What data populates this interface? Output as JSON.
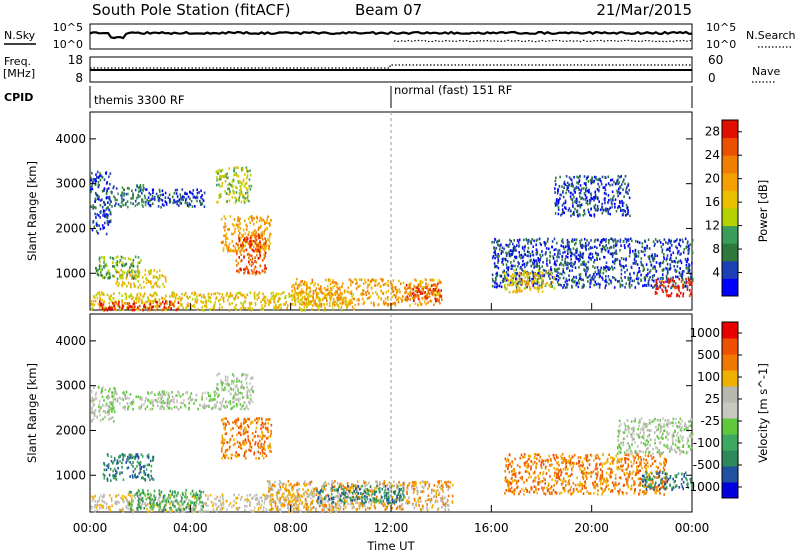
{
  "header": {
    "title": "South Pole Station (fitACF)",
    "beam": "Beam 07",
    "date": "21/Mar/2015"
  },
  "panels": {
    "nsky": {
      "label": "N.Sky",
      "ticks": [
        "10^5",
        "10^0"
      ],
      "right_ticks": [
        "10^5",
        "10^0"
      ],
      "right_label": "N.Search"
    },
    "freq": {
      "label_top": "Freq.",
      "label_bottom": "[MHz]",
      "ticks": [
        "18",
        "8"
      ],
      "right_ticks": [
        "60",
        "0"
      ],
      "right_label": "Nave"
    },
    "cpid": {
      "label": "CPID",
      "segments": [
        "themis 3300 RF",
        "normal (fast) 151 RF"
      ]
    }
  },
  "chart_data": [
    {
      "type": "heatmap",
      "title": "",
      "xlabel": "Time UT",
      "ylabel": "Slant Range [km]",
      "x_ticks": [
        "00:00",
        "04:00",
        "08:00",
        "12:00",
        "16:00",
        "20:00",
        "00:00"
      ],
      "xlim_hours": [
        0,
        24
      ],
      "ylim_km": [
        180,
        4600
      ],
      "y_ticks": [
        1000,
        2000,
        3000,
        4000
      ],
      "colorbar": {
        "label": "Power [dB]",
        "ticks": [
          "4",
          "8",
          "12",
          "16",
          "20",
          "24",
          "28"
        ],
        "colors": [
          "#0000ff",
          "#1c3fb4",
          "#2d7a3c",
          "#3a9e5a",
          "#b5d100",
          "#e8c000",
          "#f3a000",
          "#f07e00",
          "#ea5000",
          "#e01000"
        ],
        "range": [
          0,
          30
        ]
      },
      "regions": [
        {
          "t0": 0.0,
          "t1": 0.8,
          "r0": 1900,
          "r1": 3300,
          "level": 1
        },
        {
          "t0": 0.8,
          "t1": 2.2,
          "r0": 2500,
          "r1": 3000,
          "level": 2
        },
        {
          "t0": 2.2,
          "t1": 4.6,
          "r0": 2500,
          "r1": 2900,
          "level": 1
        },
        {
          "t0": 0.2,
          "t1": 2.0,
          "r0": 900,
          "r1": 1400,
          "level": 3
        },
        {
          "t0": 1.0,
          "t1": 3.0,
          "r0": 700,
          "r1": 1100,
          "level": 5
        },
        {
          "t0": 5.0,
          "t1": 6.4,
          "r0": 2600,
          "r1": 3400,
          "level": 4
        },
        {
          "t0": 5.2,
          "t1": 7.2,
          "r0": 1500,
          "r1": 2300,
          "level": 6
        },
        {
          "t0": 5.8,
          "t1": 7.0,
          "r0": 1000,
          "r1": 1900,
          "level": 8
        },
        {
          "t0": 0.0,
          "t1": 10.5,
          "r0": 200,
          "r1": 600,
          "level": 5
        },
        {
          "t0": 0.3,
          "t1": 3.5,
          "r0": 200,
          "r1": 400,
          "level": 9
        },
        {
          "t0": 8.0,
          "t1": 14.0,
          "r0": 300,
          "r1": 900,
          "level": 6
        },
        {
          "t0": 12.5,
          "t1": 14.0,
          "r0": 400,
          "r1": 800,
          "level": 8
        },
        {
          "t0": 16.0,
          "t1": 24.0,
          "r0": 700,
          "r1": 1800,
          "level": 1
        },
        {
          "t0": 16.5,
          "t1": 18.5,
          "r0": 600,
          "r1": 1100,
          "level": 5
        },
        {
          "t0": 22.5,
          "t1": 24.0,
          "r0": 500,
          "r1": 900,
          "level": 9
        },
        {
          "t0": 18.5,
          "t1": 21.5,
          "r0": 2300,
          "r1": 3200,
          "level": 1
        }
      ]
    },
    {
      "type": "heatmap",
      "title": "",
      "xlabel": "Time UT",
      "ylabel": "Slant Range [km]",
      "x_ticks": [
        "00:00",
        "04:00",
        "08:00",
        "12:00",
        "16:00",
        "20:00",
        "00:00"
      ],
      "xlim_hours": [
        0,
        24
      ],
      "ylim_km": [
        180,
        4600
      ],
      "y_ticks": [
        1000,
        2000,
        3000,
        4000
      ],
      "colorbar": {
        "label": "Velocity [m s^-1]",
        "ticks": [
          "1000",
          "500",
          "100",
          "25",
          "-25",
          "-100",
          "-500",
          "-1000"
        ],
        "colors": [
          "#0000dd",
          "#2050a0",
          "#2e8a5a",
          "#3da860",
          "#60c83c",
          "#c8c8c0",
          "#b8b8b0",
          "#f0b000",
          "#f07800",
          "#ee5000",
          "#e80000"
        ],
        "range": [
          -1200,
          1200
        ]
      },
      "regions": [
        {
          "t0": 0.0,
          "t1": 1.0,
          "r0": 2200,
          "r1": 3000,
          "level": 5
        },
        {
          "t0": 0.8,
          "t1": 5.0,
          "r0": 2500,
          "r1": 2900,
          "level": 5
        },
        {
          "t0": 5.0,
          "t1": 6.5,
          "r0": 2500,
          "r1": 3300,
          "level": 5
        },
        {
          "t0": 5.2,
          "t1": 7.2,
          "r0": 1400,
          "r1": 2300,
          "level": 8
        },
        {
          "t0": 0.5,
          "t1": 2.5,
          "r0": 900,
          "r1": 1500,
          "level": 2
        },
        {
          "t0": 0.0,
          "t1": 10.0,
          "r0": 200,
          "r1": 600,
          "level": 6
        },
        {
          "t0": 1.5,
          "t1": 4.5,
          "r0": 250,
          "r1": 700,
          "level": 3
        },
        {
          "t0": 7.0,
          "t1": 14.5,
          "r0": 250,
          "r1": 900,
          "level": 7
        },
        {
          "t0": 9.0,
          "t1": 12.5,
          "r0": 400,
          "r1": 800,
          "level": 2
        },
        {
          "t0": 16.5,
          "t1": 23.0,
          "r0": 600,
          "r1": 1500,
          "level": 8
        },
        {
          "t0": 22.0,
          "t1": 24.0,
          "r0": 700,
          "r1": 1100,
          "level": 2
        },
        {
          "t0": 21.0,
          "t1": 24.0,
          "r0": 1500,
          "r1": 2300,
          "level": 5
        }
      ]
    }
  ]
}
